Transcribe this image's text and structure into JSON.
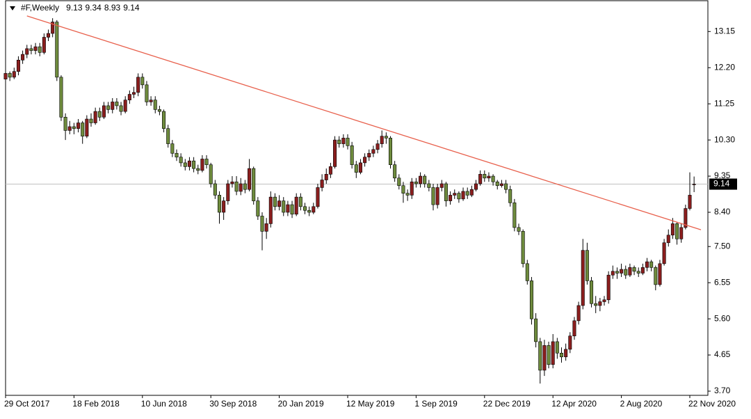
{
  "chart_data": {
    "type": "candlestick",
    "title": "#F,Weekly",
    "up_color": "#8b1e1e",
    "down_color": "#6e8b3d",
    "categories": [
      "29 Oct 2017",
      null,
      null,
      null,
      null,
      null,
      null,
      null,
      null,
      null,
      null,
      null,
      null,
      null,
      null,
      null,
      "18 Feb 2018",
      null,
      null,
      null,
      null,
      null,
      null,
      null,
      null,
      null,
      null,
      null,
      null,
      null,
      null,
      null,
      "10 Jun 2018",
      null,
      null,
      null,
      null,
      null,
      null,
      null,
      null,
      null,
      null,
      null,
      null,
      null,
      null,
      null,
      "30 Sep 2018",
      null,
      null,
      null,
      null,
      null,
      null,
      null,
      null,
      null,
      null,
      null,
      null,
      null,
      null,
      null,
      "20 Jan 2019",
      null,
      null,
      null,
      null,
      null,
      null,
      null,
      null,
      null,
      null,
      null,
      null,
      null,
      null,
      null,
      "12 May 2019",
      null,
      null,
      null,
      null,
      null,
      null,
      null,
      null,
      null,
      null,
      null,
      null,
      null,
      null,
      null,
      "1 Sep 2019",
      null,
      null,
      null,
      null,
      null,
      null,
      null,
      null,
      null,
      null,
      null,
      null,
      null,
      null,
      null,
      "22 Dec 2019",
      null,
      null,
      null,
      null,
      null,
      null,
      null,
      null,
      null,
      null,
      null,
      null,
      null,
      null,
      null,
      "12 Apr 2020",
      null,
      null,
      null,
      null,
      null,
      null,
      null,
      null,
      null,
      null,
      null,
      null,
      null,
      null,
      null,
      "2 Aug 2020",
      null,
      null,
      null,
      null,
      null,
      null,
      null,
      null,
      null,
      null,
      null,
      null,
      null,
      null,
      null,
      "22 Nov 2020",
      null
    ],
    "ohlc": [
      [
        11.9,
        12.15,
        11.8,
        12.05
      ],
      [
        12.05,
        12.1,
        11.85,
        11.95
      ],
      [
        11.95,
        12.2,
        11.9,
        12.1
      ],
      [
        12.1,
        12.5,
        12.0,
        12.4
      ],
      [
        12.4,
        12.65,
        12.3,
        12.55
      ],
      [
        12.55,
        12.8,
        12.45,
        12.7
      ],
      [
        12.7,
        12.8,
        12.55,
        12.65
      ],
      [
        12.65,
        12.85,
        12.55,
        12.75
      ],
      [
        12.75,
        12.85,
        12.5,
        12.6
      ],
      [
        12.6,
        13.1,
        12.55,
        13.0
      ],
      [
        13.0,
        13.2,
        12.9,
        13.1
      ],
      [
        13.1,
        13.5,
        13.0,
        13.4
      ],
      [
        13.4,
        13.45,
        11.85,
        11.95
      ],
      [
        11.95,
        12.0,
        10.8,
        10.9
      ],
      [
        10.9,
        11.0,
        10.3,
        10.55
      ],
      [
        10.55,
        10.8,
        10.45,
        10.65
      ],
      [
        10.65,
        10.75,
        10.45,
        10.6
      ],
      [
        10.6,
        10.85,
        10.5,
        10.75
      ],
      [
        10.75,
        10.8,
        10.2,
        10.4
      ],
      [
        10.4,
        10.95,
        10.35,
        10.85
      ],
      [
        10.85,
        11.0,
        10.65,
        10.75
      ],
      [
        10.75,
        11.15,
        10.7,
        11.05
      ],
      [
        11.05,
        11.15,
        10.8,
        10.9
      ],
      [
        10.9,
        11.3,
        10.85,
        11.2
      ],
      [
        11.2,
        11.3,
        11.0,
        11.1
      ],
      [
        11.1,
        11.4,
        11.0,
        11.3
      ],
      [
        11.3,
        11.4,
        11.1,
        11.2
      ],
      [
        11.2,
        11.3,
        10.95,
        11.05
      ],
      [
        11.05,
        11.45,
        11.0,
        11.35
      ],
      [
        11.35,
        11.6,
        11.25,
        11.5
      ],
      [
        11.5,
        11.7,
        11.4,
        11.55
      ],
      [
        11.55,
        12.05,
        11.45,
        11.95
      ],
      [
        11.95,
        12.05,
        11.65,
        11.75
      ],
      [
        11.75,
        11.85,
        11.2,
        11.3
      ],
      [
        11.3,
        11.45,
        11.2,
        11.35
      ],
      [
        11.35,
        11.45,
        11.0,
        11.1
      ],
      [
        11.1,
        11.2,
        10.95,
        11.05
      ],
      [
        11.05,
        11.1,
        10.5,
        10.6
      ],
      [
        10.6,
        10.7,
        10.1,
        10.2
      ],
      [
        10.2,
        10.3,
        9.85,
        9.95
      ],
      [
        9.95,
        10.05,
        9.75,
        9.85
      ],
      [
        9.85,
        9.95,
        9.6,
        9.7
      ],
      [
        9.7,
        9.8,
        9.5,
        9.6
      ],
      [
        9.6,
        9.85,
        9.5,
        9.75
      ],
      [
        9.75,
        9.85,
        9.45,
        9.55
      ],
      [
        9.55,
        9.65,
        9.4,
        9.5
      ],
      [
        9.5,
        9.9,
        9.45,
        9.8
      ],
      [
        9.8,
        9.9,
        9.55,
        9.65
      ],
      [
        9.65,
        9.7,
        9.05,
        9.15
      ],
      [
        9.15,
        9.25,
        8.75,
        8.85
      ],
      [
        8.85,
        8.95,
        8.1,
        8.4
      ],
      [
        8.4,
        8.8,
        8.2,
        8.7
      ],
      [
        8.7,
        9.25,
        8.6,
        9.15
      ],
      [
        9.15,
        9.35,
        9.05,
        9.2
      ],
      [
        9.2,
        9.35,
        8.85,
        8.95
      ],
      [
        8.95,
        9.3,
        8.85,
        9.15
      ],
      [
        9.15,
        9.25,
        8.9,
        9.0
      ],
      [
        9.0,
        9.8,
        8.95,
        9.55
      ],
      [
        9.55,
        9.6,
        8.6,
        8.7
      ],
      [
        8.7,
        8.8,
        8.2,
        8.3
      ],
      [
        8.3,
        8.4,
        7.4,
        7.9
      ],
      [
        7.9,
        8.25,
        7.7,
        8.1
      ],
      [
        8.1,
        8.95,
        8.0,
        8.8
      ],
      [
        8.8,
        8.9,
        8.45,
        8.55
      ],
      [
        8.55,
        8.85,
        8.45,
        8.7
      ],
      [
        8.7,
        8.8,
        8.3,
        8.4
      ],
      [
        8.4,
        8.7,
        8.3,
        8.6
      ],
      [
        8.6,
        8.7,
        8.25,
        8.35
      ],
      [
        8.35,
        8.9,
        8.3,
        8.8
      ],
      [
        8.8,
        8.9,
        8.45,
        8.55
      ],
      [
        8.55,
        8.65,
        8.35,
        8.45
      ],
      [
        8.45,
        8.55,
        8.3,
        8.4
      ],
      [
        8.4,
        8.65,
        8.35,
        8.55
      ],
      [
        8.55,
        9.15,
        8.5,
        9.05
      ],
      [
        9.05,
        9.4,
        8.95,
        9.25
      ],
      [
        9.25,
        9.55,
        9.15,
        9.4
      ],
      [
        9.4,
        9.7,
        9.3,
        9.6
      ],
      [
        9.6,
        10.4,
        9.55,
        10.3
      ],
      [
        10.3,
        10.4,
        10.1,
        10.2
      ],
      [
        10.2,
        10.45,
        10.1,
        10.35
      ],
      [
        10.35,
        10.45,
        10.05,
        10.15
      ],
      [
        10.15,
        10.25,
        9.55,
        9.65
      ],
      [
        9.65,
        9.75,
        9.3,
        9.45
      ],
      [
        9.45,
        9.8,
        9.4,
        9.7
      ],
      [
        9.7,
        9.95,
        9.6,
        9.85
      ],
      [
        9.85,
        10.05,
        9.75,
        9.95
      ],
      [
        9.95,
        10.15,
        9.85,
        10.05
      ],
      [
        10.05,
        10.3,
        9.95,
        10.2
      ],
      [
        10.2,
        10.55,
        10.1,
        10.4
      ],
      [
        10.4,
        10.5,
        10.2,
        10.35
      ],
      [
        10.35,
        10.4,
        9.55,
        9.65
      ],
      [
        9.65,
        9.75,
        9.2,
        9.3
      ],
      [
        9.3,
        9.4,
        9.0,
        9.1
      ],
      [
        9.1,
        9.2,
        8.65,
        8.9
      ],
      [
        8.9,
        9.0,
        8.7,
        8.85
      ],
      [
        8.85,
        9.3,
        8.75,
        9.2
      ],
      [
        9.2,
        9.3,
        9.05,
        9.15
      ],
      [
        9.15,
        9.45,
        9.05,
        9.35
      ],
      [
        9.35,
        9.4,
        9.05,
        9.15
      ],
      [
        9.15,
        9.25,
        8.95,
        9.05
      ],
      [
        9.05,
        9.15,
        8.45,
        8.6
      ],
      [
        8.6,
        9.15,
        8.5,
        9.05
      ],
      [
        9.05,
        9.25,
        8.95,
        9.15
      ],
      [
        9.15,
        9.2,
        8.55,
        8.7
      ],
      [
        8.7,
        8.95,
        8.6,
        8.85
      ],
      [
        8.85,
        9.0,
        8.75,
        8.9
      ],
      [
        8.9,
        8.95,
        8.65,
        8.75
      ],
      [
        8.75,
        9.05,
        8.7,
        8.95
      ],
      [
        8.95,
        9.05,
        8.75,
        8.85
      ],
      [
        8.85,
        9.1,
        8.8,
        9.0
      ],
      [
        9.0,
        9.25,
        8.95,
        9.15
      ],
      [
        9.15,
        9.5,
        9.1,
        9.4
      ],
      [
        9.4,
        9.5,
        9.2,
        9.3
      ],
      [
        9.3,
        9.45,
        9.2,
        9.35
      ],
      [
        9.35,
        9.4,
        9.1,
        9.2
      ],
      [
        9.2,
        9.25,
        9.0,
        9.1
      ],
      [
        9.1,
        9.25,
        9.05,
        9.15
      ],
      [
        9.15,
        9.25,
        8.9,
        9.0
      ],
      [
        9.0,
        9.1,
        8.55,
        8.65
      ],
      [
        8.65,
        8.75,
        7.9,
        8.0
      ],
      [
        8.0,
        8.1,
        7.8,
        7.9
      ],
      [
        7.9,
        7.95,
        6.95,
        7.05
      ],
      [
        7.05,
        7.15,
        6.5,
        6.6
      ],
      [
        6.6,
        6.7,
        5.45,
        5.6
      ],
      [
        5.6,
        5.75,
        4.85,
        5.0
      ],
      [
        5.0,
        5.1,
        3.9,
        4.25
      ],
      [
        4.25,
        5.05,
        4.1,
        4.9
      ],
      [
        4.9,
        5.0,
        4.3,
        4.4
      ],
      [
        4.4,
        5.2,
        4.3,
        5.0
      ],
      [
        5.0,
        5.1,
        4.55,
        4.7
      ],
      [
        4.7,
        4.85,
        4.45,
        4.6
      ],
      [
        4.6,
        4.95,
        4.5,
        4.8
      ],
      [
        4.8,
        5.25,
        4.7,
        5.15
      ],
      [
        5.15,
        5.65,
        5.05,
        5.55
      ],
      [
        5.55,
        6.05,
        5.45,
        5.95
      ],
      [
        5.95,
        7.7,
        5.85,
        7.4
      ],
      [
        7.4,
        7.6,
        6.5,
        6.6
      ],
      [
        6.6,
        6.7,
        5.9,
        6.0
      ],
      [
        6.0,
        6.2,
        5.75,
        5.95
      ],
      [
        5.95,
        6.15,
        5.8,
        6.05
      ],
      [
        6.05,
        6.2,
        5.95,
        6.1
      ],
      [
        6.1,
        6.85,
        6.0,
        6.75
      ],
      [
        6.75,
        7.0,
        6.65,
        6.85
      ],
      [
        6.85,
        6.95,
        6.65,
        6.8
      ],
      [
        6.8,
        7.05,
        6.7,
        6.9
      ],
      [
        6.9,
        7.0,
        6.65,
        6.75
      ],
      [
        6.75,
        7.05,
        6.7,
        6.95
      ],
      [
        6.95,
        7.0,
        6.75,
        6.85
      ],
      [
        6.85,
        6.95,
        6.7,
        6.8
      ],
      [
        6.8,
        7.05,
        6.75,
        6.95
      ],
      [
        6.95,
        7.2,
        6.85,
        7.1
      ],
      [
        7.1,
        7.15,
        6.85,
        6.95
      ],
      [
        6.95,
        7.0,
        6.35,
        6.5
      ],
      [
        6.5,
        7.15,
        6.45,
        7.05
      ],
      [
        7.05,
        7.7,
        7.0,
        7.6
      ],
      [
        7.6,
        7.95,
        7.5,
        7.8
      ],
      [
        7.8,
        8.25,
        7.7,
        8.1
      ],
      [
        8.1,
        8.15,
        7.55,
        7.7
      ],
      [
        7.7,
        8.1,
        7.6,
        8.0
      ],
      [
        8.0,
        8.6,
        7.95,
        8.5
      ],
      [
        8.5,
        9.45,
        8.45,
        8.85
      ],
      [
        9.13,
        9.34,
        8.93,
        9.14
      ]
    ],
    "trendline": {
      "x": [
        5,
        162.6
      ],
      "y": [
        13.56,
        7.94
      ],
      "color": "#e8604c"
    },
    "ylim": [
      3.59,
      13.96
    ],
    "yticks": [
      13.15,
      {
        "value": 12.2,
        "label": "12.20"
      },
      11.25,
      {
        "value": 10.3,
        "label": "10.30"
      },
      9.35,
      {
        "value": 8.4,
        "label": "8.40"
      },
      {
        "value": 7.5,
        "label": "7.50"
      },
      6.55,
      {
        "value": 5.6,
        "label": "5.60"
      },
      4.65,
      {
        "value": 3.7,
        "label": "3.70"
      }
    ]
  }
}
